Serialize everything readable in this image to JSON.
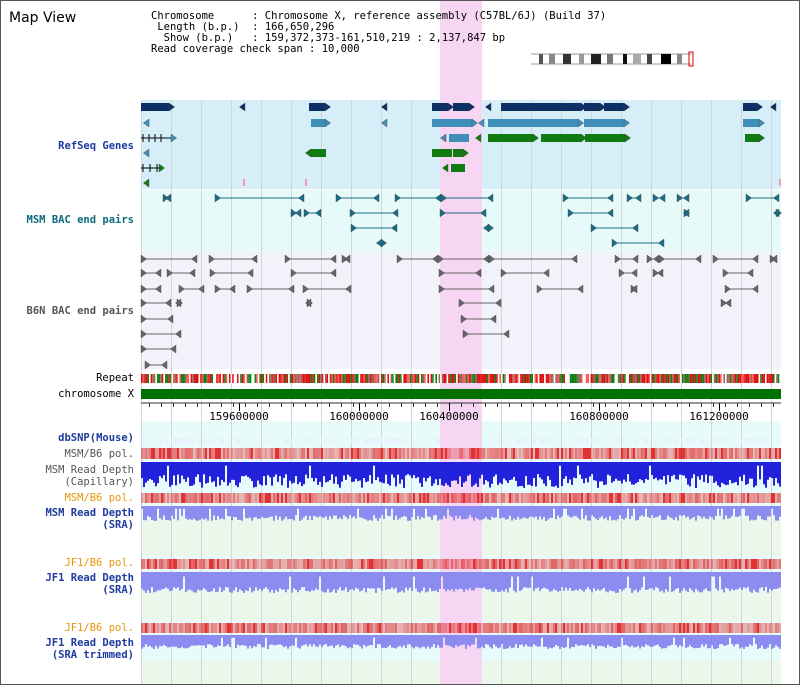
{
  "title": "Map View",
  "info": {
    "chromosome_label": "Chromosome",
    "chromosome_value": "Chromosome X, reference assembly (C57BL/6J) (Build 37)",
    "length_label": "Length (b.p.)",
    "length_value": "166,650,296",
    "show_label": "Show (b.p.)",
    "show_value": "159,372,373-161,510,219 : 2,137,847 bp",
    "coverage_label": "Read coverage check span",
    "coverage_value": "10,000"
  },
  "tracks": {
    "refseq": "RefSeq Genes",
    "msm_bac": "MSM BAC end pairs",
    "b6n_bac": "B6N BAC end pairs",
    "repeat": "Repeat",
    "chromosome": "chromosome X",
    "dbsnp": "dbSNP(Mouse)",
    "msm_b6_pol_1": "MSM/B6 pol.",
    "msm_depth_cap": "MSM Read Depth\n(Capillary)",
    "msm_b6_pol_2": "MSM/B6 pol.",
    "msm_depth_sra": "MSM Read Depth\n(SRA)",
    "jf1_b6_pol_1": "JF1/B6 pol.",
    "jf1_depth_sra": "JF1 Read Depth\n(SRA)",
    "jf1_b6_pol_2": "JF1/B6 pol.",
    "jf1_depth_trim": "JF1 Read Depth\n(SRA trimmed)"
  },
  "axis": {
    "ticks": [
      "159600000",
      "160000000",
      "160400000",
      "160800000",
      "161200000"
    ]
  },
  "colors": {
    "refseq_bg": "#d6eef8",
    "bac_bg": "#e6fafa",
    "highlight": "#f6d6f2",
    "gene_dark": "#0d2f66",
    "gene_mid": "#3f8fb8",
    "gene_green": "#117a11",
    "msm_bac": "#1a6d85",
    "b6n_bac": "#666666",
    "chrom_bar": "#007000",
    "pol_red": "#e03030",
    "depth_dark": "#2222dd",
    "depth_light": "#8c8cf0"
  }
}
